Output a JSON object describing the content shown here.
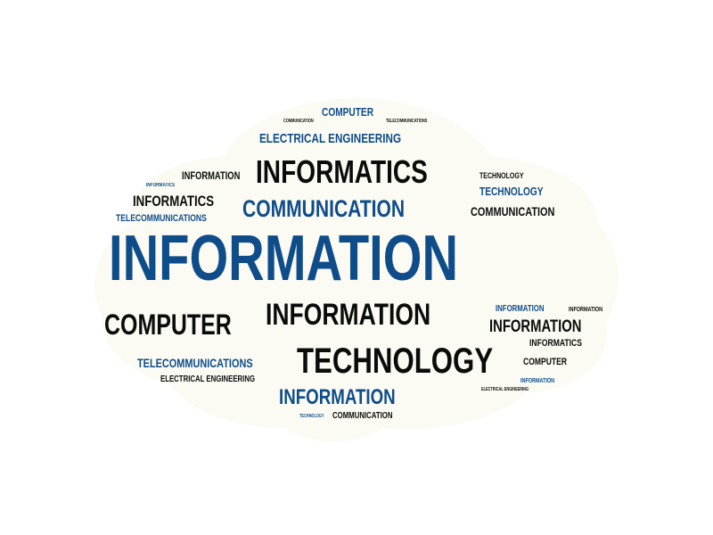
{
  "colors": {
    "blue": "#0f4c8a",
    "black": "#0b0b0b",
    "cloud": "#fbfbf3",
    "background": "#ffffff"
  },
  "words": [
    "COMPUTER",
    "COMMUNICATION",
    "TELECOMMUNICATIONS",
    "ELECTRICAL ENGINEERING",
    "INFORMATION",
    "INFORMATICS",
    "TECHNOLOGY",
    "TECHNOLOGY",
    "INFORMATICS",
    "INFORMATICS",
    "COMMUNICATION",
    "COMMUNICATION",
    "TELECOMMUNICATIONS",
    "INFORMATION",
    "INFORMATION",
    "INFORMATION",
    "INFORMATION",
    "COMPUTER",
    "INFORMATION",
    "TECHNOLOGY",
    "INFORMATICS",
    "TELECOMMUNICATIONS",
    "COMPUTER",
    "ELECTRICAL ENGINEERING",
    "INFORMATION",
    "ELECTRICAL ENGINEERING",
    "INFORMATION",
    "TECHNOLOGY",
    "COMMUNICATION"
  ]
}
